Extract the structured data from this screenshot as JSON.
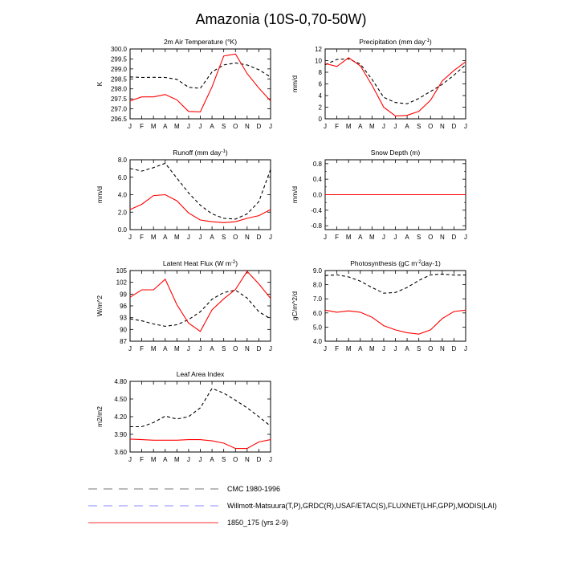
{
  "title": "Amazonia (10S-0,70-50W)",
  "months": [
    "J",
    "F",
    "M",
    "A",
    "M",
    "J",
    "J",
    "A",
    "S",
    "O",
    "N",
    "D",
    "J"
  ],
  "legend": [
    {
      "label": "CMC 1980-1996",
      "color": "#777777",
      "dash": "dashed"
    },
    {
      "label": "Willmott-Matsuura(T,P),GRDC(R),USAF/ETAC(S),FLUXNET(LHF,GPP),MODIS(LAI)",
      "color": "#8a8aff",
      "dash": "dashed"
    },
    {
      "label": "1850_175 (yrs 2-9)",
      "color": "#ff3030",
      "dash": "solid"
    }
  ],
  "chart_data": [
    {
      "type": "line",
      "title": "2m Air Temperature (°K)",
      "ylabel": "K",
      "ylim": [
        296.5,
        300.0
      ],
      "yticks": [
        "296.5",
        "297.0",
        "297.5",
        "298.0",
        "298.5",
        "299.0",
        "299.5",
        "300.0"
      ],
      "yticks_values": [
        296.5,
        297.0,
        297.5,
        298.0,
        298.5,
        299.0,
        299.5,
        300.0
      ],
      "x": [
        "J",
        "F",
        "M",
        "A",
        "M",
        "J",
        "J",
        "A",
        "S",
        "O",
        "N",
        "D",
        "J"
      ],
      "series": [
        {
          "values": [
            298.6,
            298.57,
            298.58,
            298.57,
            298.48,
            298.08,
            298.03,
            298.85,
            299.2,
            299.3,
            299.2,
            298.96,
            298.6
          ],
          "color": "#000000",
          "dash": "dashed"
        },
        {
          "values": [
            297.4,
            297.6,
            297.6,
            297.72,
            297.45,
            296.87,
            296.85,
            298.1,
            299.65,
            299.75,
            298.77,
            298.04,
            297.4
          ],
          "color": "#ff0000",
          "dash": "solid"
        }
      ]
    },
    {
      "type": "line",
      "title": "Precipitation (mm day-1)",
      "ylabel": "mm/d",
      "ylim": [
        0,
        12
      ],
      "yticks": [
        "0",
        "2",
        "4",
        "6",
        "8",
        "10",
        "12"
      ],
      "yticks_values": [
        0,
        2,
        4,
        6,
        8,
        10,
        12
      ],
      "x": [
        "J",
        "F",
        "M",
        "A",
        "M",
        "J",
        "J",
        "A",
        "S",
        "O",
        "N",
        "D",
        "J"
      ],
      "series": [
        {
          "values": [
            9.3,
            10.2,
            10.3,
            9.4,
            6.8,
            3.7,
            2.8,
            2.6,
            3.5,
            4.7,
            5.9,
            7.5,
            9.3
          ],
          "color": "#000000",
          "dash": "dashed"
        },
        {
          "values": [
            9.5,
            9.0,
            10.5,
            9.1,
            5.8,
            2.0,
            0.5,
            0.6,
            1.3,
            3.2,
            6.5,
            8.3,
            9.8
          ],
          "color": "#ff0000",
          "dash": "solid"
        }
      ]
    },
    {
      "type": "line",
      "title": "Runoff (mm day-1)",
      "ylabel": "mm/d",
      "ylim": [
        0,
        8
      ],
      "yticks": [
        "0.0",
        "2.0",
        "4.0",
        "6.0",
        "8.0"
      ],
      "yticks_values": [
        0,
        2,
        4,
        6,
        8
      ],
      "x": [
        "J",
        "F",
        "M",
        "A",
        "M",
        "J",
        "J",
        "A",
        "S",
        "O",
        "N",
        "D",
        "J"
      ],
      "series": [
        {
          "values": [
            7.0,
            6.7,
            7.1,
            7.6,
            5.9,
            4.2,
            2.8,
            1.8,
            1.3,
            1.2,
            1.8,
            3.2,
            6.9
          ],
          "color": "#000000",
          "dash": "dashed"
        },
        {
          "values": [
            2.3,
            2.9,
            3.9,
            4.0,
            3.3,
            1.9,
            1.1,
            0.9,
            0.8,
            0.9,
            1.3,
            1.6,
            2.3
          ],
          "color": "#ff0000",
          "dash": "solid"
        }
      ]
    },
    {
      "type": "line",
      "title": "Snow Depth (m)",
      "ylabel": "mm/d",
      "ylim": [
        -0.9,
        0.9
      ],
      "yticks": [
        "-0.8",
        "-0.4",
        "0.0",
        "0.4",
        "0.8"
      ],
      "yticks_values": [
        -0.8,
        -0.4,
        0.0,
        0.4,
        0.8
      ],
      "minor_yticks_values": [
        -0.6,
        -0.2,
        0.2,
        0.6
      ],
      "x": [
        "J",
        "F",
        "M",
        "A",
        "M",
        "J",
        "J",
        "A",
        "S",
        "O",
        "N",
        "D",
        "J"
      ],
      "series": [
        {
          "values": [
            0,
            0,
            0,
            0,
            0,
            0,
            0,
            0,
            0,
            0,
            0,
            0,
            0
          ],
          "color": "#000000",
          "dash": "dashed"
        },
        {
          "values": [
            0,
            0,
            0,
            0,
            0,
            0,
            0,
            0,
            0,
            0,
            0,
            0,
            0
          ],
          "color": "#ff0000",
          "dash": "solid"
        }
      ]
    },
    {
      "type": "line",
      "title": "Latent Heat Flux (W m-2)",
      "ylabel": "W/m^2",
      "ylim": [
        87,
        105
      ],
      "yticks": [
        "87",
        "90",
        "93",
        "96",
        "99",
        "102",
        "105"
      ],
      "yticks_values": [
        87,
        90,
        93,
        96,
        99,
        102,
        105
      ],
      "x": [
        "J",
        "F",
        "M",
        "A",
        "M",
        "J",
        "J",
        "A",
        "S",
        "O",
        "N",
        "D",
        "J"
      ],
      "series": [
        {
          "values": [
            92.7,
            92.2,
            91.4,
            90.8,
            91.2,
            92.5,
            94.5,
            97.7,
            99.4,
            100.0,
            98.0,
            94.5,
            92.7
          ],
          "color": "#000000",
          "dash": "dashed"
        },
        {
          "values": [
            98.2,
            100.1,
            100.1,
            102.8,
            96.3,
            91.6,
            89.5,
            95.0,
            97.8,
            100.2,
            104.8,
            101.6,
            97.9
          ],
          "color": "#ff0000",
          "dash": "solid"
        }
      ]
    },
    {
      "type": "line",
      "title": "Photosynthesis (gC m-2day-1)",
      "ylabel": "gC/m^2/d",
      "ylim": [
        4.0,
        9.0
      ],
      "yticks": [
        "4.0",
        "5.0",
        "6.0",
        "7.0",
        "8.0",
        "9.0"
      ],
      "yticks_values": [
        4,
        5,
        6,
        7,
        8,
        9
      ],
      "x": [
        "J",
        "F",
        "M",
        "A",
        "M",
        "J",
        "J",
        "A",
        "S",
        "O",
        "N",
        "D",
        "J"
      ],
      "series": [
        {
          "values": [
            8.65,
            8.7,
            8.55,
            8.25,
            7.8,
            7.4,
            7.45,
            7.8,
            8.3,
            8.7,
            8.75,
            8.68,
            8.68
          ],
          "color": "#000000",
          "dash": "dashed"
        },
        {
          "values": [
            6.2,
            6.05,
            6.15,
            6.05,
            5.7,
            5.1,
            4.8,
            4.6,
            4.5,
            4.8,
            5.6,
            6.1,
            6.2
          ],
          "color": "#ff0000",
          "dash": "solid"
        }
      ]
    },
    {
      "type": "line",
      "title": "Leaf Area Index",
      "ylabel": "m2/m2",
      "ylim": [
        3.6,
        4.8
      ],
      "yticks": [
        "3.60",
        "3.90",
        "4.20",
        "4.50",
        "4.80"
      ],
      "yticks_values": [
        3.6,
        3.9,
        4.2,
        4.5,
        4.8
      ],
      "x": [
        "J",
        "F",
        "M",
        "A",
        "M",
        "J",
        "J",
        "A",
        "S",
        "O",
        "N",
        "D",
        "J"
      ],
      "series": [
        {
          "values": [
            4.03,
            4.03,
            4.1,
            4.21,
            4.16,
            4.2,
            4.35,
            4.68,
            4.6,
            4.48,
            4.35,
            4.2,
            4.04
          ],
          "color": "#000000",
          "dash": "dashed"
        },
        {
          "values": [
            3.82,
            3.81,
            3.8,
            3.8,
            3.8,
            3.81,
            3.81,
            3.79,
            3.75,
            3.66,
            3.66,
            3.77,
            3.81
          ],
          "color": "#ff0000",
          "dash": "solid"
        }
      ]
    }
  ]
}
